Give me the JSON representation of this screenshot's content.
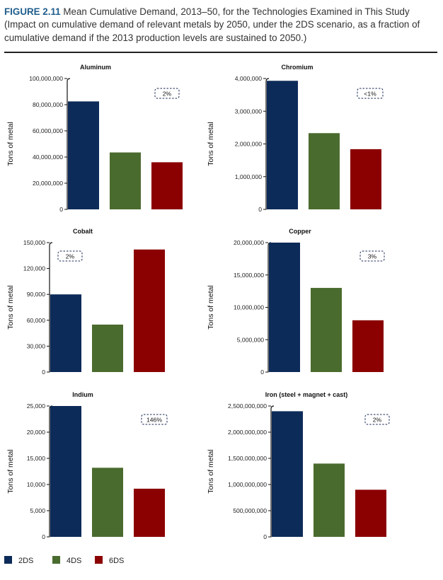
{
  "figure": {
    "label": "FIGURE 2.11",
    "title": "Mean Cumulative Demand, 2013–50, for the Technologies Examined in This Study (Impact on cumulative demand of relevant metals by 2050, under the 2DS scenario, as a fraction of cumulative demand if the 2013 production levels are sustained to 2050.)"
  },
  "legend": [
    {
      "label": "2DS",
      "color": "#0d2b59"
    },
    {
      "label": "4DS",
      "color": "#4a6b2e"
    },
    {
      "label": "6DS",
      "color": "#8b0000"
    }
  ],
  "chart_data": [
    {
      "type": "bar",
      "title": "Aluminum",
      "ylabel": "Tons of metal",
      "categories": [
        "2DS",
        "4DS",
        "6DS"
      ],
      "values": [
        82500000,
        43500000,
        36000000
      ],
      "ylim": [
        0,
        100000000
      ],
      "yticks": [
        0,
        20000000,
        40000000,
        60000000,
        80000000,
        100000000
      ],
      "ytick_labels": [
        "0",
        "20,000,000",
        "40,000,000",
        "60,000,000",
        "80,000,000",
        "100,000,000"
      ],
      "annotation": "2%",
      "annotation_position": "top-right"
    },
    {
      "type": "bar",
      "title": "Chromium",
      "ylabel": "Tons of metal",
      "categories": [
        "2DS",
        "4DS",
        "6DS"
      ],
      "values": [
        3930000,
        2330000,
        1840000
      ],
      "ylim": [
        0,
        4000000
      ],
      "yticks": [
        0,
        1000000,
        2000000,
        3000000,
        4000000
      ],
      "ytick_labels": [
        "0",
        "1,000,000",
        "2,000,000",
        "3,000,000",
        "4,000,000"
      ],
      "annotation": "<1%",
      "annotation_position": "top-right"
    },
    {
      "type": "bar",
      "title": "Cobalt",
      "ylabel": "Tons of metal",
      "categories": [
        "2DS",
        "4DS",
        "6DS"
      ],
      "values": [
        90000,
        55000,
        142000
      ],
      "ylim": [
        0,
        150000
      ],
      "yticks": [
        0,
        30000,
        60000,
        90000,
        120000,
        150000
      ],
      "ytick_labels": [
        "0",
        "30,000",
        "60,000",
        "90,000",
        "120,000",
        "150,000"
      ],
      "annotation": "2%",
      "annotation_position": "top-left"
    },
    {
      "type": "bar",
      "title": "Copper",
      "ylabel": "Tons of metal",
      "categories": [
        "2DS",
        "4DS",
        "6DS"
      ],
      "values": [
        20000000,
        13000000,
        8000000
      ],
      "ylim": [
        0,
        20000000
      ],
      "yticks": [
        0,
        5000000,
        10000000,
        15000000,
        20000000
      ],
      "ytick_labels": [
        "0",
        "5,000,000",
        "10,000,000",
        "15,000,000",
        "20,000,000"
      ],
      "annotation": "3%",
      "annotation_position": "top-right"
    },
    {
      "type": "bar",
      "title": "Indium",
      "ylabel": "Tons of metal",
      "categories": [
        "2DS",
        "4DS",
        "6DS"
      ],
      "values": [
        25000,
        13200,
        9200
      ],
      "ylim": [
        0,
        25000
      ],
      "yticks": [
        0,
        5000,
        10000,
        15000,
        20000,
        25000
      ],
      "ytick_labels": [
        "0",
        "5,000",
        "10,000",
        "15,000",
        "20,000",
        "25,000"
      ],
      "annotation": "146%",
      "annotation_position": "top-right"
    },
    {
      "type": "bar",
      "title": "Iron (steel + magnet + cast)",
      "ylabel": "Tons of metal",
      "categories": [
        "2DS",
        "4DS",
        "6DS"
      ],
      "values": [
        2400000000,
        1400000000,
        900000000
      ],
      "ylim": [
        0,
        2500000000
      ],
      "yticks": [
        0,
        500000000,
        1000000000,
        1500000000,
        2000000000,
        2500000000
      ],
      "ytick_labels": [
        "0",
        "500,000,000",
        "1,000,000,000",
        "1,500,000,000",
        "2,000,000,000",
        "2,500,000,000"
      ],
      "annotation": "2%",
      "annotation_position": "top-right"
    }
  ]
}
